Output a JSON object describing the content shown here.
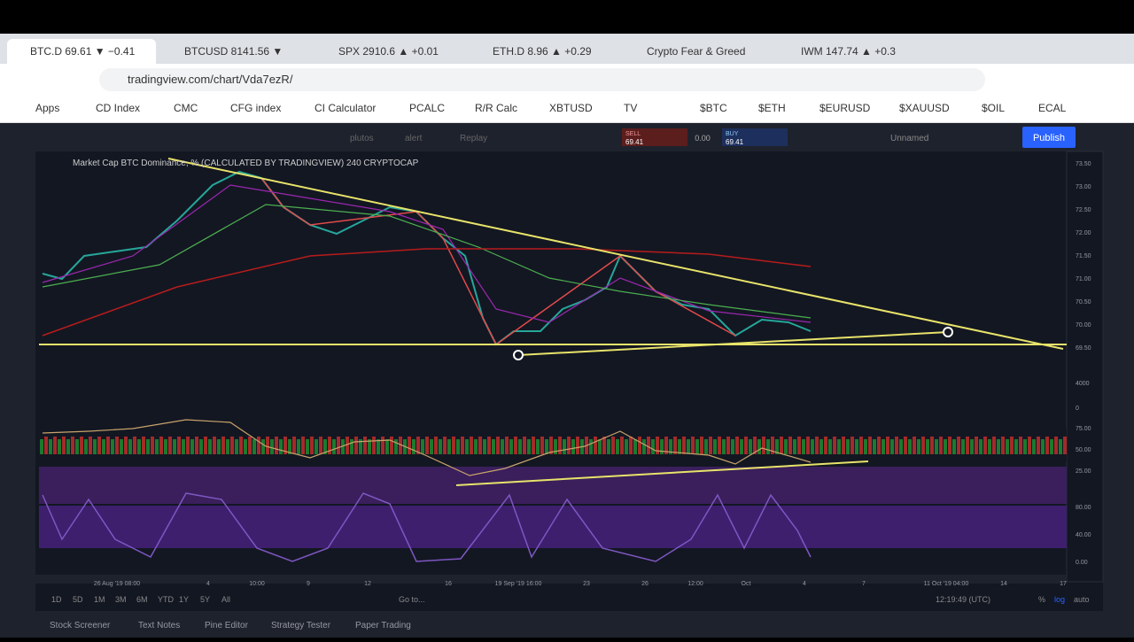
{
  "browser": {
    "tabs": [
      "BTC.D 69.61 ▼ −0.41",
      "BTCUSD 8141.56 ▼",
      "SPX 2910.6 ▲ +0.01",
      "ETH.D 8.96 ▲ +0.29",
      "Crypto Fear & Greed",
      "IWM 147.74 ▲ +0.3"
    ],
    "url": "tradingview.com/chart/Vda7ezR/",
    "bookmarks": [
      "Apps",
      "CD Index",
      "CMC",
      "CFG index",
      "CI Calculator",
      "PCALC",
      "R/R Calc",
      "XBTUSD",
      "TV",
      "$BTC",
      "$ETH",
      "$EURUSD",
      "$XAUUSD",
      "$OIL",
      "ECAL"
    ]
  },
  "toolbar": {
    "items": [
      "plutos",
      "alert",
      "Replay"
    ],
    "sell_label": "SELL",
    "sell_price": "69.41",
    "spread": "0.00",
    "buy_label": "BUY",
    "buy_price": "69.41",
    "layout_name": "Unnamed",
    "publish": "Publish"
  },
  "chart": {
    "header": "Market Cap BTC Dominance, % (CALCULATED BY TRADINGVIEW)  240  CRYPTOCAP",
    "price_labels": [
      "73.50",
      "73.00",
      "72.50",
      "72.00",
      "71.50",
      "71.00",
      "70.50",
      "70.00",
      "69.50"
    ],
    "volume_labels": [
      "4000",
      "0"
    ],
    "rsi_labels": [
      "75.00",
      "50.00",
      "25.00"
    ],
    "stoch_labels": [
      "80.00",
      "40.00",
      "0.00"
    ],
    "time_labels": [
      "26 Aug '19 08:00",
      "10:00",
      "4",
      "9",
      "12",
      "16",
      "19 Sep '19 16:00",
      "23",
      "26",
      "12:00",
      "Oct",
      "4",
      "7",
      "11 Oct '19 04:00",
      "14",
      "17"
    ]
  },
  "footer": {
    "ranges": [
      "1D",
      "5D",
      "1M",
      "3M",
      "6M",
      "YTD",
      "1Y",
      "5Y",
      "All"
    ],
    "goto": "Go to...",
    "clock": "12:19:49 (UTC)",
    "pct": "%",
    "log": "log",
    "auto": "auto",
    "tabs": [
      "Stock Screener",
      "Text Notes",
      "Pine Editor",
      "Strategy Tester",
      "Paper Trading"
    ]
  }
}
